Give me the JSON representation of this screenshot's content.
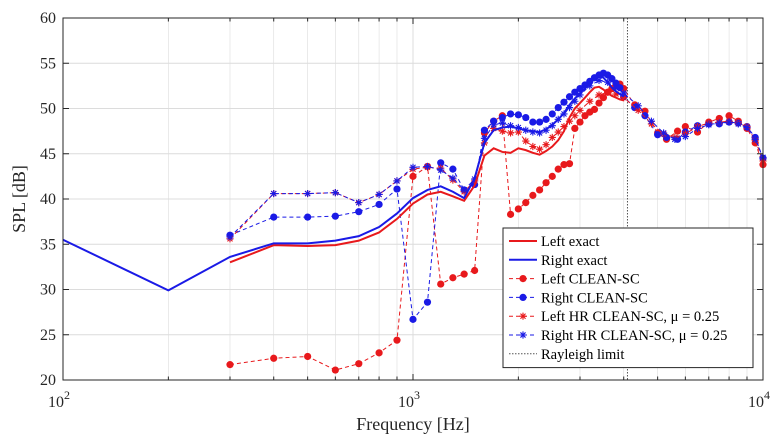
{
  "chart_data": {
    "type": "line",
    "xlabel": "Frequency [Hz]",
    "ylabel": "SPL [dB]",
    "xscale": "log",
    "xlim": [
      100,
      10000
    ],
    "ylim": [
      20,
      60
    ],
    "x_ticks": [
      {
        "base": "10",
        "exp": "2",
        "value": 100
      },
      {
        "base": "10",
        "exp": "3",
        "value": 1000
      },
      {
        "base": "10",
        "exp": "4",
        "value": 10000
      }
    ],
    "y_ticks": [
      20,
      25,
      30,
      35,
      40,
      45,
      50,
      55,
      60
    ],
    "grid": true,
    "legend_position": "bottom-right",
    "colors": {
      "red": "#e8191c",
      "blue": "#1a1ae6",
      "rayleigh": "#555555",
      "grid": "#dcdcdc"
    },
    "rayleigh_limit": {
      "label": "Rayleigh limit",
      "x": 4100
    },
    "series": [
      {
        "name": "Left exact",
        "color": "#e8191c",
        "style": "solid",
        "marker": "none",
        "x": [
          300,
          400,
          500,
          600,
          700,
          800,
          900,
          1000,
          1100,
          1200,
          1300,
          1400,
          1500,
          1600,
          1700,
          1800,
          1900,
          2000,
          2100,
          2200,
          2300,
          2400,
          2500,
          2600,
          2700,
          2800,
          2900,
          3000,
          3100,
          3200,
          3300,
          3400,
          3500,
          3600,
          3700,
          3800,
          3900,
          4000
        ],
        "y": [
          33.0,
          34.9,
          34.8,
          34.9,
          35.4,
          36.3,
          37.8,
          39.5,
          40.5,
          40.8,
          40.3,
          39.8,
          41.5,
          44.8,
          45.6,
          45.2,
          45.1,
          45.6,
          45.4,
          45.1,
          44.9,
          45.3,
          45.8,
          46.5,
          47.5,
          49.0,
          50.0,
          50.6,
          51.2,
          51.8,
          52.3,
          52.4,
          52.1,
          51.7,
          51.4,
          51.2,
          51.0,
          50.9
        ]
      },
      {
        "name": "Right exact",
        "color": "#1a1ae6",
        "style": "solid",
        "marker": "none",
        "x": [
          100,
          200,
          300,
          400,
          500,
          600,
          700,
          800,
          900,
          1000,
          1100,
          1200,
          1300,
          1400,
          1500,
          1600,
          1700,
          1800,
          1900,
          2000,
          2100,
          2200,
          2300,
          2400,
          2500,
          2600,
          2700,
          2800,
          2900,
          3000,
          3100,
          3200,
          3300,
          3400,
          3500,
          3600,
          3700,
          3800,
          3900,
          4000
        ],
        "y": [
          35.5,
          29.9,
          33.6,
          35.1,
          35.1,
          35.4,
          35.9,
          36.9,
          38.4,
          40.1,
          41.0,
          41.4,
          40.8,
          40.1,
          42.3,
          46.2,
          47.6,
          47.9,
          48.0,
          47.8,
          47.6,
          47.5,
          47.4,
          47.7,
          48.2,
          48.8,
          49.5,
          50.4,
          51.1,
          51.7,
          52.2,
          52.8,
          53.4,
          53.6,
          53.4,
          52.9,
          52.3,
          51.9,
          51.6,
          51.3
        ]
      },
      {
        "name": "Left CLEAN-SC",
        "color": "#e8191c",
        "style": "dashed",
        "marker": "dot",
        "x": [
          300,
          400,
          500,
          600,
          700,
          800,
          900,
          1000,
          1100,
          1200,
          1300,
          1400,
          1500,
          1600,
          1700,
          1800,
          1900,
          2000,
          2100,
          2200,
          2300,
          2400,
          2500,
          2600,
          2700,
          2800,
          2900,
          3000,
          3100,
          3200,
          3300,
          3400,
          3500,
          3600,
          3700,
          3800,
          3900,
          4000,
          4300,
          4600,
          5000,
          5300,
          5700,
          6000,
          6500,
          7000,
          7500,
          8000,
          8500,
          9000,
          9500,
          10000
        ],
        "y": [
          21.7,
          22.4,
          22.6,
          21.1,
          21.8,
          23.0,
          24.4,
          42.5,
          43.6,
          30.6,
          31.3,
          31.7,
          32.1,
          47.3,
          48.6,
          49.2,
          38.3,
          38.9,
          39.6,
          40.4,
          41.0,
          41.8,
          42.5,
          43.3,
          43.8,
          43.9,
          47.8,
          48.5,
          49.2,
          49.6,
          49.9,
          50.6,
          51.2,
          51.8,
          52.2,
          52.6,
          52.7,
          52.2,
          50.4,
          49.7,
          47.3,
          46.6,
          47.5,
          48.0,
          47.4,
          48.5,
          48.9,
          49.2,
          48.6,
          47.8,
          46.2,
          43.8
        ]
      },
      {
        "name": "Right CLEAN-SC",
        "color": "#1a1ae6",
        "style": "dashed",
        "marker": "dot",
        "x": [
          300,
          400,
          500,
          600,
          700,
          800,
          900,
          1000,
          1100,
          1200,
          1300,
          1400,
          1500,
          1600,
          1700,
          1800,
          1900,
          2000,
          2100,
          2200,
          2300,
          2400,
          2500,
          2600,
          2700,
          2800,
          2900,
          3000,
          3100,
          3200,
          3300,
          3400,
          3500,
          3600,
          3700,
          3800,
          3900,
          4000,
          4300,
          4600,
          5000,
          5300,
          5700,
          6000,
          6500,
          7000,
          7500,
          8000,
          8500,
          9000,
          9500,
          10000
        ],
        "y": [
          36.0,
          38.0,
          38.0,
          38.1,
          38.6,
          39.4,
          41.1,
          26.7,
          28.6,
          44.0,
          43.3,
          41.0,
          41.6,
          47.6,
          48.6,
          49.0,
          49.4,
          49.3,
          49.0,
          48.5,
          48.5,
          48.8,
          49.4,
          50.1,
          50.7,
          51.3,
          51.8,
          52.2,
          52.6,
          53.0,
          53.4,
          53.7,
          53.9,
          53.7,
          53.3,
          52.8,
          52.3,
          51.3,
          50.1,
          49.2,
          47.1,
          46.8,
          46.6,
          47.4,
          48.1,
          48.3,
          48.3,
          48.5,
          48.4,
          48.0,
          46.8,
          44.5
        ]
      },
      {
        "name": "Left HR CLEAN-SC, μ = 0.25",
        "color": "#e8191c",
        "style": "dashed",
        "marker": "star",
        "x": [
          300,
          400,
          500,
          600,
          700,
          800,
          900,
          1000,
          1100,
          1200,
          1300,
          1400,
          1500,
          1600,
          1700,
          1800,
          1900,
          2000,
          2100,
          2200,
          2300,
          2400,
          2500,
          2600,
          2700,
          2800,
          2900,
          3000,
          3200,
          3400,
          3600,
          3800,
          4000,
          4400,
          4800,
          5200,
          5600,
          6000,
          6500,
          7000,
          7500,
          8000,
          8500,
          9000,
          9500,
          10000
        ],
        "y": [
          35.6,
          40.6,
          40.6,
          40.7,
          39.6,
          40.5,
          42.0,
          43.3,
          43.5,
          43.4,
          42.1,
          40.8,
          42.0,
          46.2,
          47.8,
          47.5,
          47.3,
          47.4,
          46.4,
          45.8,
          45.5,
          46.0,
          46.8,
          47.4,
          48.0,
          48.6,
          49.2,
          49.8,
          50.8,
          51.5,
          51.8,
          51.6,
          51.2,
          49.8,
          48.3,
          47.2,
          46.8,
          47.2,
          48.0,
          48.4,
          48.5,
          48.6,
          48.4,
          48.0,
          46.5,
          44.2
        ]
      },
      {
        "name": "Right HR CLEAN-SC, μ = 0.25",
        "color": "#1a1ae6",
        "style": "dashed",
        "marker": "star",
        "x": [
          300,
          400,
          500,
          600,
          700,
          800,
          900,
          1000,
          1100,
          1200,
          1300,
          1400,
          1500,
          1600,
          1700,
          1800,
          1900,
          2000,
          2100,
          2200,
          2300,
          2400,
          2500,
          2600,
          2700,
          2800,
          2900,
          3000,
          3200,
          3400,
          3600,
          3800,
          4000,
          4400,
          4800,
          5200,
          5600,
          6000,
          6500,
          7000,
          7500,
          8000,
          8500,
          9000,
          9500,
          10000
        ],
        "y": [
          35.8,
          40.6,
          40.6,
          40.7,
          39.6,
          40.5,
          42.0,
          43.5,
          43.6,
          43.2,
          42.3,
          41.0,
          42.2,
          46.7,
          48.2,
          48.4,
          48.1,
          47.9,
          47.6,
          47.4,
          47.3,
          47.6,
          48.1,
          48.8,
          49.4,
          50.1,
          50.8,
          51.5,
          52.5,
          53.1,
          52.9,
          52.3,
          51.7,
          50.3,
          48.6,
          47.3,
          46.6,
          46.9,
          47.8,
          48.2,
          48.4,
          48.5,
          48.3,
          47.9,
          46.6,
          44.6
        ]
      }
    ]
  }
}
